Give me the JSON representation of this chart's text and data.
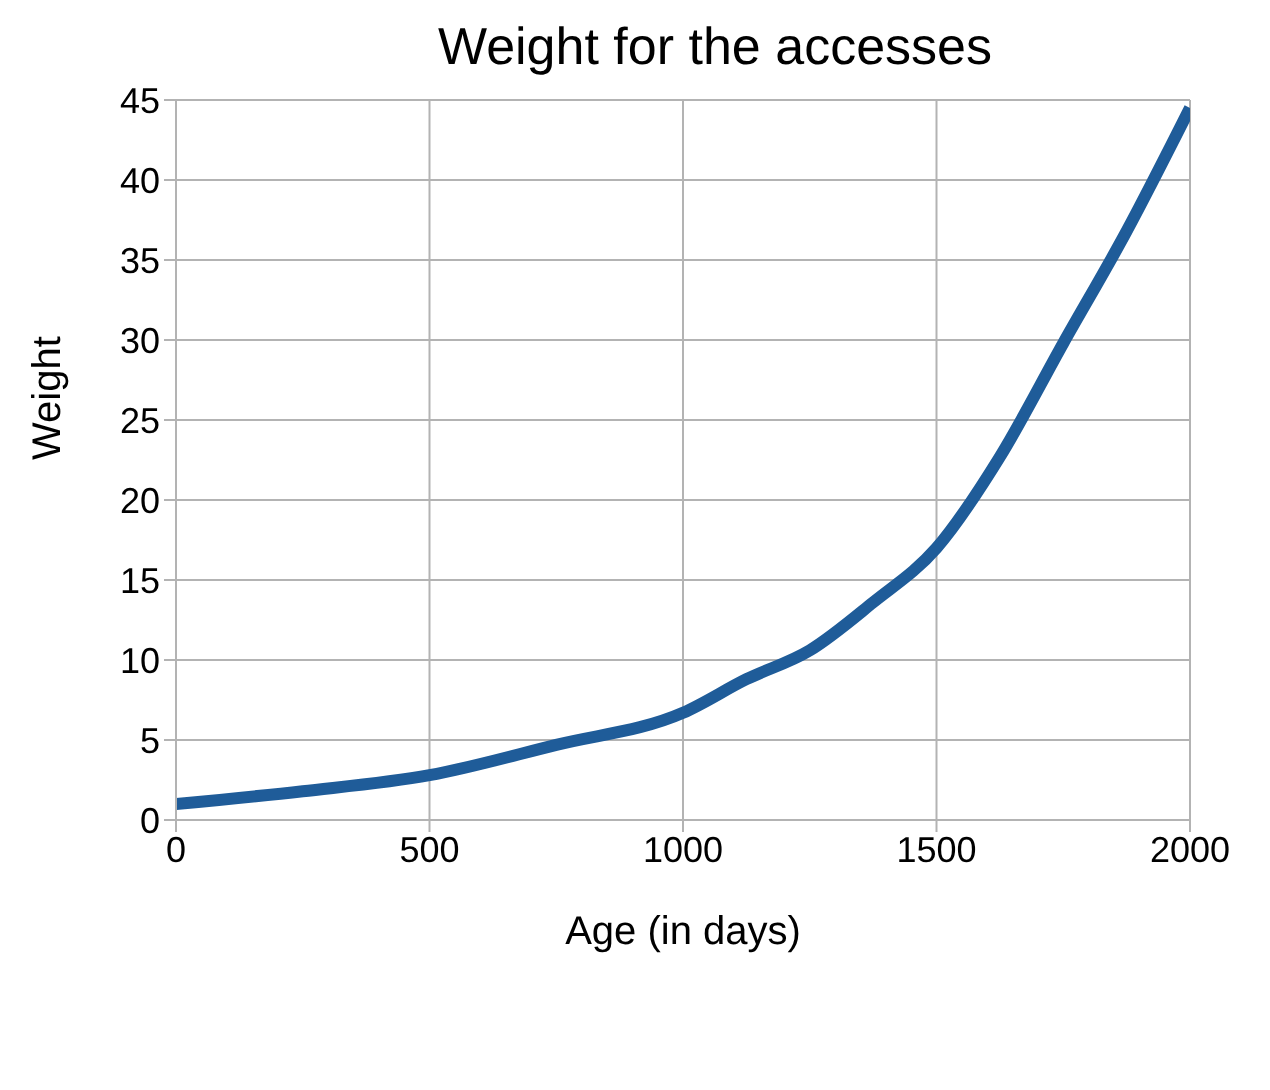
{
  "chart_data": {
    "type": "line",
    "title": "Weight for the accesses",
    "xlabel": "Age (in days)",
    "ylabel": "Weight",
    "x": [
      0,
      250,
      500,
      750,
      1000,
      1125,
      1250,
      1375,
      1500,
      1625,
      1750,
      1875,
      2000
    ],
    "series": [
      {
        "color": "#1f5c99",
        "values": [
          1.0,
          1.8,
          2.8,
          4.7,
          6.7,
          8.8,
          10.6,
          13.6,
          17,
          22.7,
          29.8,
          36.8,
          44.5
        ]
      }
    ],
    "xlim": [
      0,
      2000
    ],
    "xticks": [
      0,
      500,
      1000,
      1500,
      2000
    ],
    "ylim": [
      0,
      45
    ],
    "yticks": [
      0,
      5,
      10,
      15,
      20,
      25,
      30,
      35,
      40,
      45
    ],
    "grid": true,
    "legend": false,
    "marker": "none",
    "line_style": "solid"
  }
}
